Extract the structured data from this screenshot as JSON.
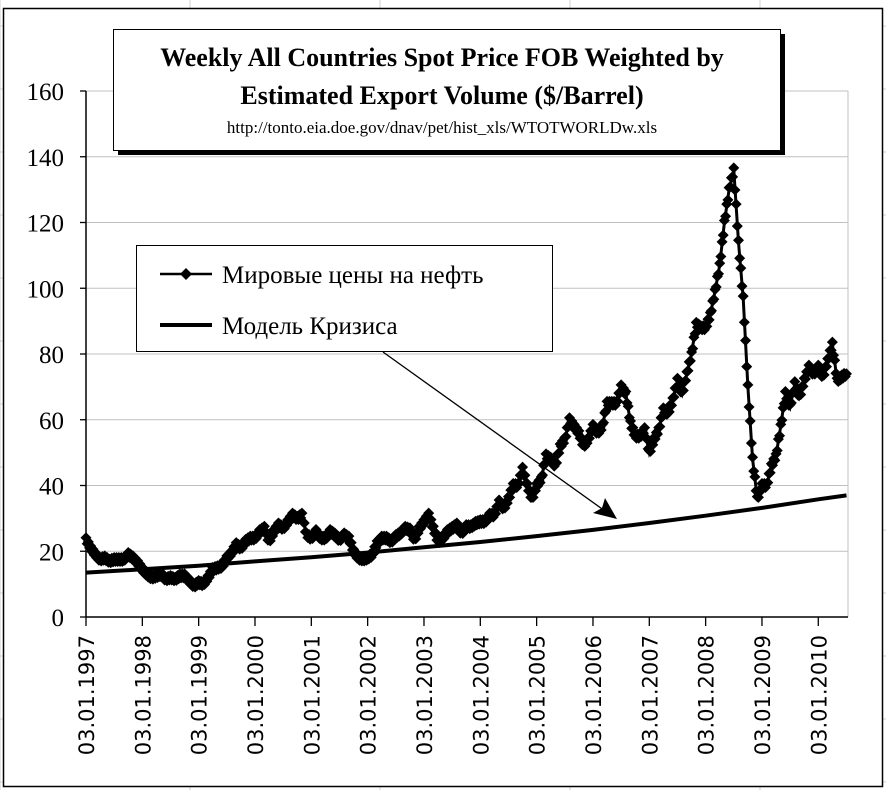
{
  "chart_data": {
    "type": "line",
    "title": "Weekly All Countries Spot Price FOB Weighted by",
    "title_line2": "Estimated Export Volume  ($/Barrel)",
    "subtitle": "http://tonto.eia.doe.gov/dnav/pet/hist_xls/WTOTWORLDw.xls",
    "xlabel": "",
    "ylabel": "",
    "ylim": [
      0,
      160
    ],
    "yticks": [
      "0",
      "20",
      "40",
      "60",
      "80",
      "100",
      "120",
      "140",
      "160"
    ],
    "xlim": [
      "1997-01",
      "2010-07"
    ],
    "xticks": [
      "03.01.1997",
      "03.01.1998",
      "03.01.1999",
      "03.01.2000",
      "03.01.2001",
      "03.01.2002",
      "03.01.2003",
      "03.01.2004",
      "03.01.2005",
      "03.01.2006",
      "03.01.2007",
      "03.01.2008",
      "03.01.2009",
      "03.01.2010"
    ],
    "grid": "horizontal",
    "legend_placement": "upper-left",
    "series": [
      {
        "name": "Мировые цены на нефть",
        "marker": "diamond",
        "color": "#000000",
        "x_start": "1997-01",
        "x_step": "month",
        "values": [
          23.5,
          21,
          19,
          17.5,
          18,
          17,
          17.5,
          17.5,
          17.5,
          19,
          18,
          16.5,
          14.5,
          13,
          12,
          12.5,
          13,
          11.5,
          12,
          11.5,
          12.5,
          12.5,
          11,
          9.5,
          10.5,
          10,
          12,
          14.5,
          15,
          15.5,
          18,
          19.5,
          22,
          21,
          23,
          24,
          24,
          26,
          27,
          23,
          26,
          28,
          27,
          29,
          31,
          30,
          31,
          25,
          24,
          26,
          24,
          24,
          26,
          25,
          23.5,
          25,
          24,
          20,
          18,
          17.5,
          18,
          19,
          22.5,
          24,
          24,
          23,
          24.5,
          25.5,
          27,
          26.5,
          23.5,
          27,
          29,
          31,
          27,
          23,
          24,
          26,
          27,
          28,
          25.5,
          27.5,
          27.5,
          28.5,
          29,
          29,
          31,
          31,
          35,
          33,
          36,
          40,
          40,
          45,
          40,
          36,
          40,
          42,
          49,
          48,
          46,
          52,
          54,
          60,
          58,
          56,
          52,
          54,
          58,
          56,
          58,
          65,
          65,
          65,
          70,
          68,
          59,
          55,
          55,
          57,
          50,
          54,
          57,
          63,
          62,
          66,
          72,
          68,
          74,
          80,
          89,
          88,
          88,
          92,
          99,
          107,
          120,
          130,
          136,
          114,
          97,
          70,
          48,
          36,
          40,
          40,
          46,
          49,
          58,
          68,
          64,
          71,
          67,
          72,
          76,
          74,
          76,
          73,
          78,
          83,
          72,
          73,
          74
        ]
      },
      {
        "name": "Модель Кризиса",
        "marker": "none",
        "color": "#000000",
        "x": [
          "1997-01",
          "1998-01",
          "1999-01",
          "2000-01",
          "2001-01",
          "2002-01",
          "2003-01",
          "2004-01",
          "2005-01",
          "2006-01",
          "2007-01",
          "2008-01",
          "2009-01",
          "2010-01",
          "2010-07"
        ],
        "values": [
          13.5,
          14.5,
          15.6,
          16.9,
          18.2,
          19.6,
          21.2,
          22.8,
          24.6,
          26.5,
          28.6,
          30.8,
          33.2,
          35.8,
          37.0
        ]
      }
    ]
  }
}
